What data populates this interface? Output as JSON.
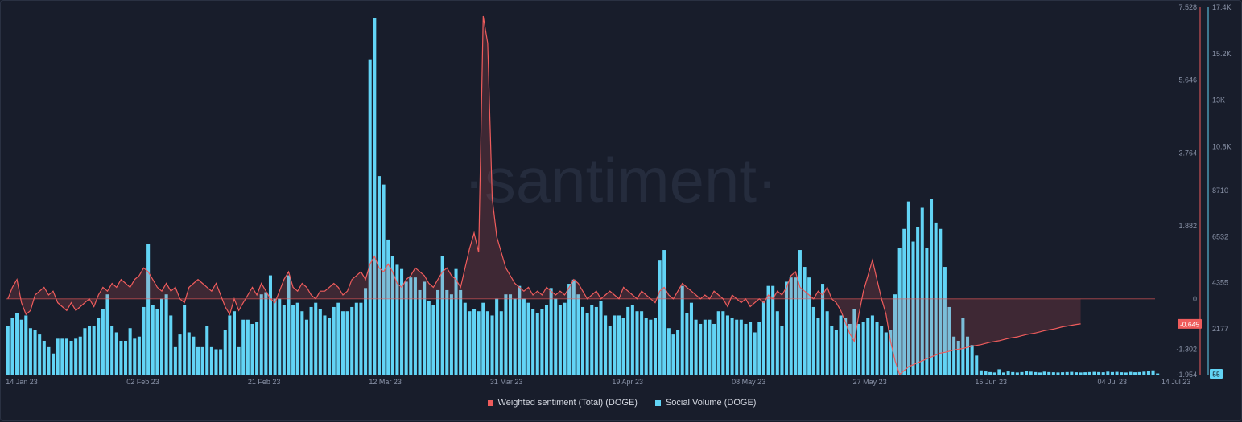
{
  "chart_data": {
    "type": "bar",
    "watermark": "·santiment·",
    "x_ticks": [
      "14 Jan 23",
      "02 Feb 23",
      "21 Feb 23",
      "12 Mar 23",
      "31 Mar 23",
      "19 Apr 23",
      "08 May 23",
      "27 May 23",
      "15 Jun 23",
      "04 Jul 23",
      "14 Jul 23"
    ],
    "y_left_ticks": [
      "7.528",
      "5.646",
      "3.764",
      "1.882",
      "0",
      "-1.302",
      "-1.954"
    ],
    "y_right_ticks": [
      "17.4K",
      "15.2K",
      "13K",
      "10.8K",
      "8710",
      "6532",
      "4355",
      "2177"
    ],
    "ylim_sentiment": [
      -1.954,
      7.528
    ],
    "ylim_volume": [
      0,
      17400
    ],
    "current_sentiment_label": "-0.645",
    "current_volume_label": "55",
    "colors": {
      "sentiment": "#ef5c5c",
      "volume": "#62d4f5",
      "background": "#181d2b"
    },
    "series": [
      {
        "name": "Weighted sentiment (Total) (DOGE)",
        "values": [
          0.0,
          0.3,
          0.5,
          -0.1,
          -0.4,
          -0.3,
          0.1,
          0.2,
          0.3,
          0.1,
          0.2,
          -0.1,
          -0.2,
          -0.3,
          -0.1,
          -0.3,
          -0.2,
          -0.1,
          0.0,
          -0.2,
          0.1,
          0.3,
          0.2,
          0.4,
          0.3,
          0.5,
          0.4,
          0.3,
          0.5,
          0.6,
          0.8,
          0.7,
          0.5,
          0.3,
          0.2,
          0.4,
          0.2,
          0.3,
          0.0,
          -0.1,
          0.3,
          0.4,
          0.5,
          0.4,
          0.3,
          0.2,
          0.4,
          0.1,
          -0.2,
          -0.4,
          0.0,
          -0.3,
          -0.1,
          0.1,
          0.3,
          0.1,
          0.4,
          0.2,
          0.0,
          -0.1,
          0.2,
          0.5,
          0.7,
          0.3,
          0.2,
          0.4,
          0.3,
          0.1,
          0.0,
          0.2,
          0.2,
          0.3,
          0.4,
          0.3,
          0.1,
          0.2,
          0.5,
          0.6,
          0.7,
          0.5,
          0.9,
          1.1,
          0.8,
          0.7,
          0.9,
          0.7,
          0.4,
          0.3,
          0.5,
          0.6,
          0.8,
          0.7,
          0.6,
          0.4,
          0.3,
          0.5,
          0.7,
          0.8,
          0.6,
          0.5,
          0.3,
          0.8,
          1.3,
          1.7,
          1.2,
          7.3,
          6.6,
          2.6,
          1.6,
          1.2,
          0.8,
          0.6,
          0.4,
          0.3,
          0.2,
          0.3,
          0.1,
          0.2,
          0.1,
          0.3,
          0.2,
          0.1,
          0.2,
          0.1,
          0.3,
          0.5,
          0.4,
          0.2,
          0.0,
          0.1,
          0.2,
          0.0,
          0.1,
          0.2,
          0.1,
          0.0,
          0.3,
          0.2,
          0.1,
          0.0,
          0.2,
          0.1,
          0.0,
          -0.1,
          0.2,
          0.3,
          0.1,
          0.0,
          0.2,
          0.4,
          0.3,
          0.2,
          0.1,
          0.0,
          0.1,
          0.0,
          0.2,
          0.1,
          0.0,
          -0.2,
          0.1,
          0.0,
          -0.1,
          0.0,
          -0.2,
          -0.1,
          0.0,
          -0.1,
          0.1,
          0.0,
          0.2,
          0.1,
          0.3,
          0.6,
          0.7,
          0.3,
          0.2,
          0.1,
          0.0,
          0.2,
          0.1,
          0.3,
          0.0,
          -0.1,
          -0.3,
          -0.6,
          -0.9,
          -1.1,
          -0.4,
          0.2,
          0.6,
          1.0,
          0.5,
          0.0,
          -0.4,
          -1.1,
          -1.6,
          -1.95,
          -1.85,
          -1.75,
          -1.7,
          -1.65,
          -1.6,
          -1.55,
          -1.5,
          -1.45,
          -1.4,
          -1.38,
          -1.35,
          -1.32,
          -1.3,
          -1.28,
          -1.25,
          -1.22,
          -1.2,
          -1.18,
          -1.15,
          -1.12,
          -1.1,
          -1.08,
          -1.05,
          -1.02,
          -1.0,
          -0.98,
          -0.95,
          -0.92,
          -0.9,
          -0.88,
          -0.85,
          -0.82,
          -0.8,
          -0.78,
          -0.75,
          -0.72,
          -0.7,
          -0.68,
          -0.66,
          -0.645
        ]
      },
      {
        "name": "Social Volume (DOGE)",
        "values": [
          2300,
          2700,
          2900,
          2600,
          2800,
          2200,
          2100,
          1900,
          1600,
          1300,
          1000,
          1700,
          1700,
          1700,
          1600,
          1700,
          1800,
          2200,
          2300,
          2300,
          2700,
          3100,
          3800,
          2300,
          2000,
          1600,
          1600,
          2200,
          1700,
          1800,
          3200,
          6200,
          3300,
          3100,
          3600,
          3800,
          2800,
          1300,
          1900,
          3300,
          2000,
          1800,
          1300,
          1300,
          2300,
          1300,
          1200,
          1200,
          2100,
          2800,
          3000,
          1300,
          2600,
          2600,
          2400,
          2500,
          3800,
          3900,
          4700,
          3600,
          3600,
          3300,
          4700,
          3300,
          3400,
          3000,
          2600,
          3200,
          3400,
          3100,
          2800,
          2700,
          3200,
          3400,
          3000,
          3000,
          3200,
          3400,
          3400,
          4100,
          14900,
          16900,
          9400,
          9000,
          6400,
          5600,
          5200,
          5000,
          4400,
          4600,
          4600,
          4000,
          4400,
          3500,
          3300,
          4000,
          5600,
          4000,
          3800,
          5000,
          4000,
          3400,
          3000,
          3100,
          3000,
          3400,
          3000,
          2800,
          3600,
          3000,
          3800,
          3800,
          3600,
          4200,
          3600,
          3400,
          3100,
          2900,
          3100,
          3300,
          4100,
          3600,
          3300,
          3400,
          4300,
          4500,
          3800,
          3200,
          2900,
          3300,
          3200,
          3500,
          2800,
          2300,
          2800,
          2800,
          2700,
          3200,
          3300,
          3000,
          3000,
          2700,
          2600,
          2700,
          5400,
          5900,
          2200,
          1900,
          2100,
          4200,
          2900,
          3400,
          2600,
          2400,
          2600,
          2600,
          2400,
          3000,
          3000,
          2800,
          2700,
          2600,
          2600,
          2400,
          2500,
          2000,
          2500,
          3500,
          4200,
          4200,
          3000,
          2300,
          4400,
          4600,
          4600,
          5900,
          5100,
          4600,
          3200,
          2700,
          4300,
          3000,
          2300,
          2100,
          2800,
          2700,
          2400,
          3100,
          2400,
          2500,
          2700,
          2800,
          2500,
          2300,
          2000,
          2100,
          3800,
          6000,
          6900,
          8200,
          6300,
          7000,
          7900,
          6000,
          8300,
          7200,
          6900,
          5100,
          3200,
          1800,
          1600,
          2700,
          1800,
          1400,
          900,
          200,
          150,
          120,
          100,
          250,
          100,
          150,
          120,
          100,
          120,
          160,
          140,
          120,
          100,
          140,
          120,
          110,
          100,
          110,
          120,
          130,
          110,
          100,
          110,
          120,
          130,
          120,
          110,
          140,
          120,
          130,
          110,
          100,
          130,
          110,
          120,
          140,
          160,
          200,
          55
        ]
      }
    ]
  },
  "legend": {
    "sentiment_label": "Weighted sentiment (Total) (DOGE)",
    "volume_label": "Social Volume (DOGE)"
  }
}
